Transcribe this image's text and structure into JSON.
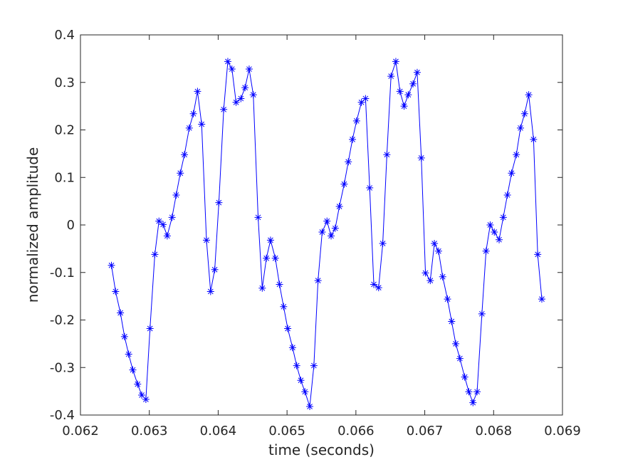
{
  "chart_data": {
    "type": "line",
    "title": "",
    "xlabel": "time (seconds)",
    "ylabel": "normalized amplitude",
    "xlim": [
      0.062,
      0.069
    ],
    "ylim": [
      -0.4,
      0.4
    ],
    "x_ticks": [
      0.062,
      0.063,
      0.064,
      0.065,
      0.066,
      0.067,
      0.068,
      0.069
    ],
    "x_tick_labels": [
      "0.062",
      "0.063",
      "0.064",
      "0.065",
      "0.066",
      "0.067",
      "0.068",
      "0.069"
    ],
    "y_ticks": [
      -0.4,
      -0.3,
      -0.2,
      -0.1,
      0,
      0.1,
      0.2,
      0.3,
      0.4
    ],
    "y_tick_labels": [
      "-0.4",
      "-0.3",
      "-0.2",
      "-0.1",
      "0",
      "0.1",
      "0.2",
      "0.3",
      "0.4"
    ],
    "grid": false,
    "marker": "asterisk",
    "series": [
      {
        "color": "#0000ff",
        "x": [
          0.06245,
          0.06251,
          0.06258,
          0.06264,
          0.0627,
          0.06276,
          0.06283,
          0.06289,
          0.06295,
          0.06301,
          0.06308,
          0.06314,
          0.0632,
          0.06326,
          0.06333,
          0.06339,
          0.06345,
          0.06351,
          0.06358,
          0.06364,
          0.0637,
          0.06376,
          0.06383,
          0.06389,
          0.06395,
          0.06401,
          0.06408,
          0.06414,
          0.0642,
          0.06426,
          0.06433,
          0.06439,
          0.06445,
          0.06451,
          0.06458,
          0.06464,
          0.0647,
          0.06476,
          0.06483,
          0.06489,
          0.06495,
          0.06501,
          0.06508,
          0.06514,
          0.0652,
          0.06526,
          0.06533,
          0.06539,
          0.06545,
          0.06551,
          0.06558,
          0.06564,
          0.0657,
          0.06576,
          0.06583,
          0.06589,
          0.06595,
          0.06601,
          0.06608,
          0.06614,
          0.0662,
          0.06626,
          0.06633,
          0.06639,
          0.06645,
          0.06651,
          0.06658,
          0.06664,
          0.0667,
          0.06676,
          0.06683,
          0.06689,
          0.06695,
          0.06701,
          0.06708,
          0.06714,
          0.0672,
          0.06726,
          0.06733,
          0.06739,
          0.06745,
          0.06751,
          0.06758,
          0.06764,
          0.0677,
          0.06776,
          0.06783,
          0.06789,
          0.06795,
          0.06801,
          0.06808,
          0.06814,
          0.0682,
          0.06826,
          0.06833,
          0.06839,
          0.06845,
          0.06851,
          0.06858,
          0.06864,
          0.0687
        ],
        "y": [
          -0.085,
          -0.14,
          -0.185,
          -0.235,
          -0.272,
          -0.305,
          -0.335,
          -0.358,
          -0.367,
          -0.218,
          -0.062,
          0.008,
          0.001,
          -0.023,
          0.016,
          0.063,
          0.109,
          0.148,
          0.204,
          0.234,
          0.281,
          0.212,
          -0.032,
          -0.14,
          -0.094,
          0.047,
          0.243,
          0.344,
          0.328,
          0.258,
          0.266,
          0.289,
          0.328,
          0.274,
          0.016,
          -0.133,
          -0.07,
          -0.032,
          -0.07,
          -0.125,
          -0.172,
          -0.218,
          -0.258,
          -0.296,
          -0.327,
          -0.351,
          -0.382,
          -0.296,
          -0.117,
          -0.015,
          0.008,
          -0.023,
          -0.007,
          0.039,
          0.086,
          0.133,
          0.18,
          0.219,
          0.258,
          0.266,
          0.078,
          -0.125,
          -0.132,
          -0.039,
          0.148,
          0.313,
          0.344,
          0.281,
          0.25,
          0.274,
          0.297,
          0.321,
          0.141,
          -0.101,
          -0.117,
          -0.039,
          -0.055,
          -0.109,
          -0.156,
          -0.203,
          -0.25,
          -0.281,
          -0.32,
          -0.351,
          -0.374,
          -0.351,
          -0.187,
          -0.055,
          0.0,
          -0.015,
          -0.031,
          0.016,
          0.063,
          0.109,
          0.148,
          0.204,
          0.234,
          0.274,
          0.18,
          -0.062,
          -0.156
        ]
      }
    ]
  }
}
